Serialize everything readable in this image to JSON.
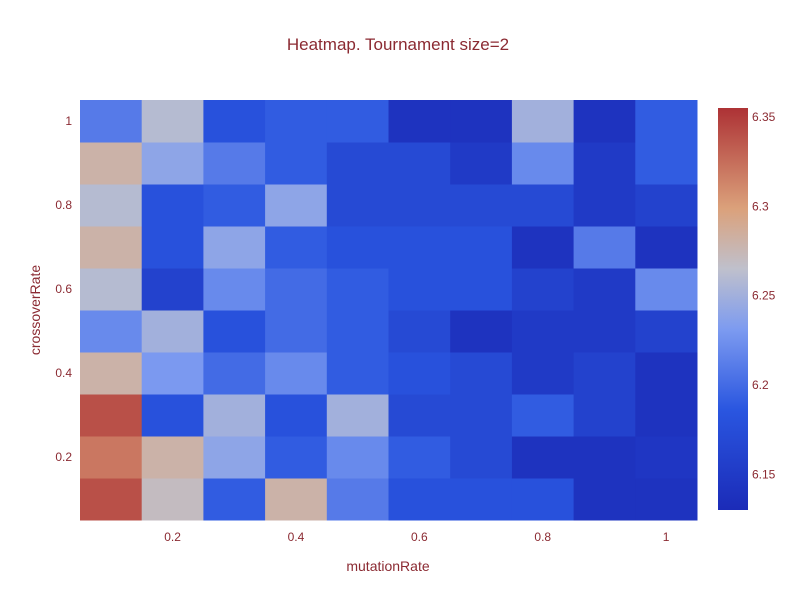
{
  "chart_data": {
    "type": "heatmap",
    "title": "Heatmap. Tournament size=2",
    "xlabel": "mutationRate",
    "ylabel": "crossoverRate",
    "x": [
      0.1,
      0.2,
      0.3,
      0.4,
      0.5,
      0.6,
      0.7,
      0.8,
      0.9,
      1.0
    ],
    "y": [
      0.1,
      0.2,
      0.3,
      0.4,
      0.5,
      0.6,
      0.7,
      0.8,
      0.9,
      1.0
    ],
    "x_tick_labels": [
      "0.2",
      "0.4",
      "0.6",
      "0.8",
      "1"
    ],
    "x_tick_values": [
      0.2,
      0.4,
      0.6,
      0.8,
      1.0
    ],
    "y_tick_labels": [
      "0.2",
      "0.4",
      "0.6",
      "0.8",
      "1"
    ],
    "y_tick_values": [
      0.2,
      0.4,
      0.6,
      0.8,
      1.0
    ],
    "xlim": [
      0.05,
      1.05
    ],
    "ylim": [
      0.05,
      1.05
    ],
    "z": [
      [
        6.34,
        6.27,
        6.19,
        6.28,
        6.21,
        6.18,
        6.18,
        6.18,
        6.14,
        6.14
      ],
      [
        6.32,
        6.28,
        6.24,
        6.19,
        6.22,
        6.19,
        6.17,
        6.14,
        6.14,
        6.145
      ],
      [
        6.34,
        6.18,
        6.25,
        6.18,
        6.25,
        6.17,
        6.17,
        6.19,
        6.16,
        6.14
      ],
      [
        6.28,
        6.23,
        6.2,
        6.22,
        6.19,
        6.18,
        6.17,
        6.15,
        6.16,
        6.14
      ],
      [
        6.22,
        6.25,
        6.18,
        6.2,
        6.19,
        6.17,
        6.14,
        6.15,
        6.15,
        6.16
      ],
      [
        6.26,
        6.16,
        6.22,
        6.2,
        6.19,
        6.18,
        6.18,
        6.16,
        6.15,
        6.22
      ],
      [
        6.28,
        6.18,
        6.24,
        6.19,
        6.18,
        6.18,
        6.18,
        6.14,
        6.21,
        6.14
      ],
      [
        6.26,
        6.18,
        6.19,
        6.24,
        6.17,
        6.17,
        6.17,
        6.17,
        6.15,
        6.16
      ],
      [
        6.28,
        6.24,
        6.21,
        6.19,
        6.17,
        6.17,
        6.15,
        6.22,
        6.15,
        6.19
      ],
      [
        6.21,
        6.26,
        6.18,
        6.19,
        6.19,
        6.14,
        6.14,
        6.25,
        6.14,
        6.19
      ]
    ],
    "zmin": 6.13,
    "zmax": 6.355,
    "colorscale": [
      [
        0.0,
        "#1b2bb8"
      ],
      [
        0.25,
        "#2a56e0"
      ],
      [
        0.45,
        "#7d9bf0"
      ],
      [
        0.6,
        "#bfc0cc"
      ],
      [
        0.75,
        "#dba17b"
      ],
      [
        1.0,
        "#ad3235"
      ]
    ],
    "colorbar_tick_labels": [
      "6.35",
      "6.3",
      "6.25",
      "6.2",
      "6.15"
    ],
    "colorbar_tick_values": [
      6.35,
      6.3,
      6.25,
      6.2,
      6.15
    ],
    "colors": {
      "text": "#8b2a32",
      "tick": "#444444"
    }
  }
}
